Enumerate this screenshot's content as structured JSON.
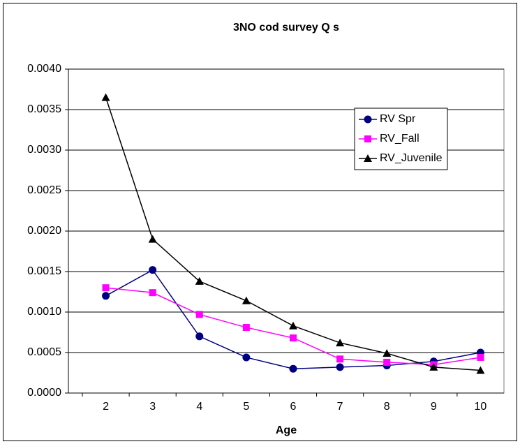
{
  "chart_data": {
    "type": "line",
    "title": "3NO cod survey Q s",
    "x_label": "Age",
    "categories": [
      "2",
      "3",
      "4",
      "5",
      "6",
      "7",
      "8",
      "9",
      "10"
    ],
    "series": [
      {
        "name": "RV Spr",
        "color": "#000080",
        "marker": "circle",
        "values": [
          0.0012,
          0.00152,
          0.0007,
          0.00044,
          0.0003,
          0.00032,
          0.00034,
          0.00039,
          0.0005
        ]
      },
      {
        "name": "RV_Fall",
        "color": "#ff00ff",
        "marker": "square",
        "values": [
          0.0013,
          0.00124,
          0.00097,
          0.00081,
          0.00068,
          0.00042,
          0.00038,
          0.00035,
          0.00044
        ]
      },
      {
        "name": "RV_Juvenile",
        "color": "#000000",
        "marker": "triangle",
        "values": [
          0.00365,
          0.0019,
          0.00138,
          0.00114,
          0.00083,
          0.00062,
          0.00049,
          0.00032,
          0.00028
        ]
      }
    ],
    "ylim": [
      0,
      0.004
    ],
    "yticks": [
      {
        "value": 0,
        "label": "0.0000"
      },
      {
        "value": 0.0005,
        "label": "0.0005"
      },
      {
        "value": 0.001,
        "label": "0.0010"
      },
      {
        "value": 0.0015,
        "label": "0.0015"
      },
      {
        "value": 0.002,
        "label": "0.0020"
      },
      {
        "value": 0.0025,
        "label": "0.0025"
      },
      {
        "value": 0.003,
        "label": "0.0030"
      },
      {
        "value": 0.0035,
        "label": "0.0035"
      },
      {
        "value": 0.004,
        "label": "0.0040"
      }
    ],
    "grid": true,
    "legend": "upper right"
  }
}
